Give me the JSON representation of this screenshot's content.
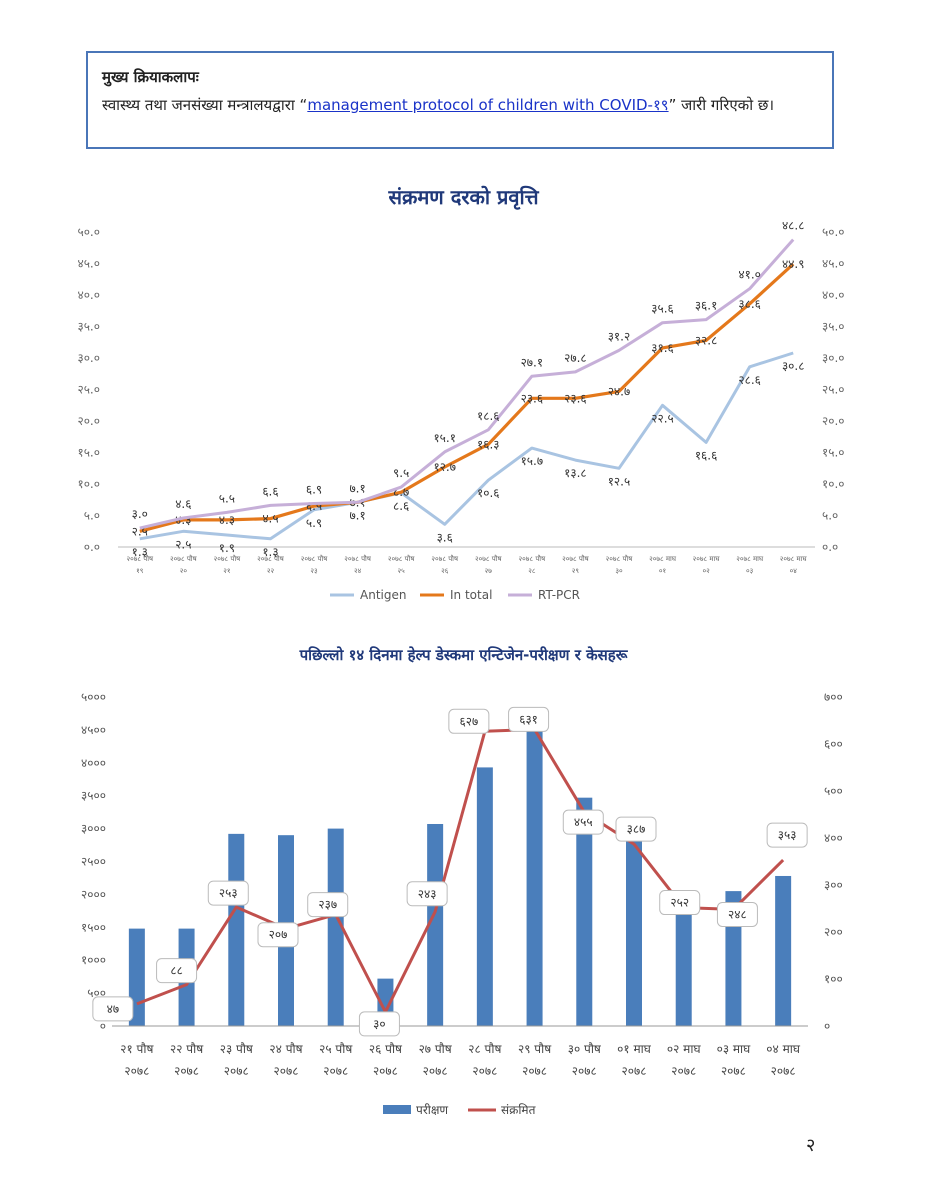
{
  "activity": {
    "title": "मुख्य क्रियाकलापः",
    "text_before": "स्वास्थ्य तथा जनसंख्या मन्त्रालयद्वारा “",
    "link_text": "management protocol of children with COVID-१९",
    "text_after": "” जारी गरिएको छ।"
  },
  "page_number": "२",
  "chart_data": [
    {
      "type": "line",
      "title": "संक्रमण दरको प्रवृत्ति",
      "categories": [
        "२०७८ पौष १९",
        "२०७८ पौष २०",
        "२०७८ पौष २१",
        "२०७८ पौष २२",
        "२०७८ पौष २३",
        "२०७८ पौष २४",
        "२०७८ पौष २५",
        "२०७८ पौष २६",
        "२०७८ पौष २७",
        "२०७८ पौष २८",
        "२०७८ पौष २९",
        "२०७८ पौष ३०",
        "२०७८ माघ ०१",
        "२०७८ माघ ०२",
        "२०७८ माघ ०३",
        "२०७८ माघ ०४"
      ],
      "ylim": [
        0,
        50
      ],
      "y_ticks": [
        "०.०",
        "५.०",
        "१०.०",
        "१५.०",
        "२०.०",
        "२५.०",
        "३०.०",
        "३५.०",
        "४०.०",
        "४५.०",
        "५०.०"
      ],
      "legend_position": "bottom",
      "series": [
        {
          "name": "Antigen",
          "color": "#a9c4e2",
          "values": [
            1.3,
            2.5,
            1.9,
            1.3,
            5.9,
            7.1,
            8.6,
            3.6,
            10.6,
            15.7,
            13.8,
            12.5,
            22.5,
            16.6,
            28.6,
            30.8
          ],
          "labels": [
            "१.३",
            "२.५",
            "१.९",
            "१.३",
            "५.९",
            "७.१",
            "८.६",
            "३.६",
            "१०.६",
            "१५.७",
            "१३.८",
            "१२.५",
            "२२.५",
            "१६.६",
            "२८.६",
            "३०.८"
          ]
        },
        {
          "name": "In total",
          "color": "#e4781b",
          "values": [
            2.5,
            4.3,
            4.3,
            4.5,
            6.5,
            7.1,
            8.7,
            12.7,
            16.3,
            23.6,
            23.6,
            24.7,
            31.6,
            32.8,
            38.6,
            44.9
          ],
          "labels": [
            "२.५",
            "४.३",
            "४.३",
            "४.५",
            "६.५",
            "७.१",
            "८.७",
            "१२.७",
            "१६.३",
            "२३.६",
            "२३.६",
            "२४.७",
            "३१.६",
            "३२.८",
            "३८.६",
            "४४.९"
          ]
        },
        {
          "name": "RT-PCR",
          "color": "#c6afd8",
          "values": [
            3.0,
            4.6,
            5.5,
            6.6,
            6.9,
            7.1,
            9.5,
            15.1,
            18.6,
            27.1,
            27.8,
            31.2,
            35.6,
            36.1,
            41.0,
            48.8
          ],
          "labels": [
            "३.०",
            "४.६",
            "५.५",
            "६.६",
            "६.९",
            "७.१",
            "९.५",
            "१५.१",
            "१८.६",
            "२७.१",
            "२७.८",
            "३१.२",
            "३५.६",
            "३६.१",
            "४१.०",
            "४८.८"
          ]
        }
      ]
    },
    {
      "type": "bar",
      "title": "पछिल्लो १४ दिनमा हेल्प डेस्कमा एन्टिजेन-परीक्षण र केसहरू",
      "categories": [
        "२१ पौष २०७८",
        "२२ पौष २०७८",
        "२३ पौष २०७८",
        "२४ पौष २०७८",
        "२५ पौष २०७८",
        "२६ पौष २०७८",
        "२७ पौष २०७८",
        "२८ पौष २०७८",
        "२९ पौष २०७८",
        "३० पौष २०७८",
        "०१ माघ २०७८",
        "०२ माघ २०७८",
        "०३ माघ २०७८",
        "०४ माघ २०७८"
      ],
      "y_left": {
        "lim": [
          0,
          5000
        ],
        "ticks": [
          "०",
          "५००",
          "१०००",
          "१५००",
          "२०००",
          "२५००",
          "३०००",
          "३५००",
          "४०००",
          "४५००",
          "५०००"
        ]
      },
      "y_right": {
        "lim": [
          0,
          700
        ],
        "ticks": [
          "०",
          "१००",
          "२००",
          "३००",
          "४००",
          "५००",
          "६००",
          "७००"
        ]
      },
      "legend_position": "bottom",
      "series": [
        {
          "name": "परीक्षण",
          "type": "bar",
          "axis": "left",
          "color": "#4a7ebb",
          "values": [
            1480,
            1480,
            2920,
            2900,
            3000,
            720,
            3070,
            3930,
            4500,
            3470,
            3100,
            1930,
            2050,
            2280
          ]
        },
        {
          "name": "संक्रमित",
          "type": "line",
          "axis": "right",
          "color": "#c0504d",
          "values": [
            47,
            88,
            253,
            207,
            237,
            30,
            243,
            627,
            631,
            455,
            387,
            252,
            248,
            353
          ],
          "labels": [
            "४७",
            "८८",
            "२५३",
            "२०७",
            "२३७",
            "३०",
            "२४३",
            "६२७",
            "६३१",
            "४५५",
            "३८७",
            "२५२",
            "२४८",
            "३५३"
          ]
        }
      ]
    }
  ]
}
